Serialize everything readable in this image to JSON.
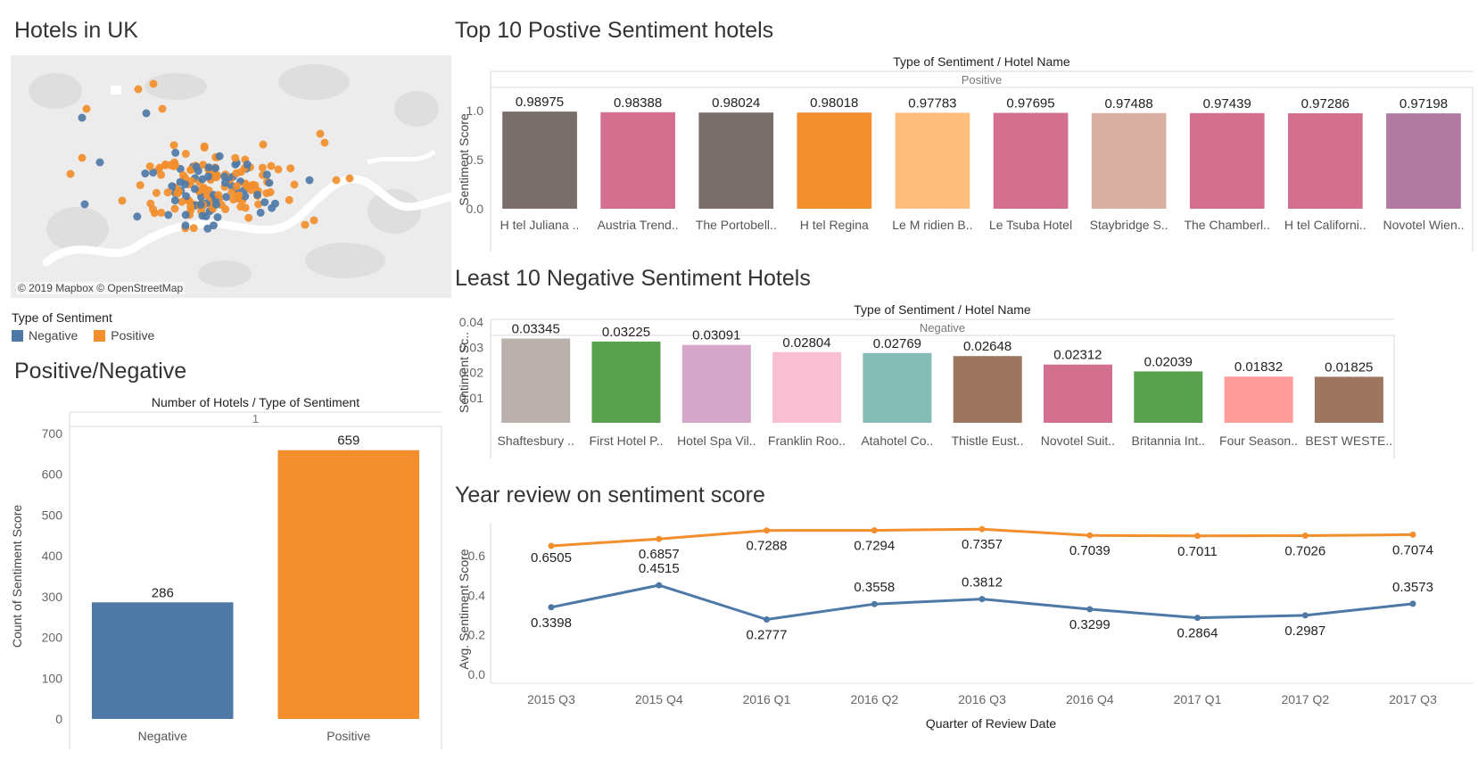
{
  "map": {
    "title": "Hotels in UK",
    "credit": "© 2019 Mapbox © OpenStreetMap",
    "legend_title": "Type of Sentiment",
    "legend": [
      {
        "label": "Negative",
        "color": "#4e79a7"
      },
      {
        "label": "Positive",
        "color": "#f28e2b"
      }
    ]
  },
  "chart_data": [
    {
      "id": "posneg",
      "type": "bar",
      "title": "Positive/Negative",
      "header": "Number of Hotels / Type of Sentiment",
      "subheader": "1",
      "ylabel": "Count of Sentiment Score",
      "categories": [
        "Negative",
        "Positive"
      ],
      "values": [
        286,
        659
      ],
      "colors": [
        "#4e79a7",
        "#f28e2b"
      ],
      "ylim": [
        0,
        700
      ],
      "yticks": [
        "0",
        "100",
        "200",
        "300",
        "400",
        "500",
        "600",
        "700"
      ]
    },
    {
      "id": "top10",
      "type": "bar",
      "title": "Top 10 Postive Sentiment hotels",
      "header": "Type of Sentiment / Hotel Name",
      "subheader": "Positive",
      "ylabel": "Sentiment Score",
      "categories": [
        "H tel Juliana ..",
        "Austria Trend..",
        "The Portobell..",
        "H tel Regina",
        "Le M ridien B..",
        "Le Tsuba Hotel",
        "Staybridge S..",
        "The Chamberl..",
        "H tel Californi..",
        "Novotel Wien.."
      ],
      "values": [
        0.98975,
        0.98388,
        0.98024,
        0.98018,
        0.97783,
        0.97695,
        0.97488,
        0.97439,
        0.97286,
        0.97198
      ],
      "labels": [
        "0.98975",
        "0.98388",
        "0.98024",
        "0.98018",
        "0.97783",
        "0.97695",
        "0.97488",
        "0.97439",
        "0.97286",
        "0.97198"
      ],
      "colors": [
        "#7a6e6b",
        "#d4708f",
        "#7a6e6b",
        "#f28e2b",
        "#ffbe7d",
        "#d4708f",
        "#d8b1a3",
        "#d4708f",
        "#d4708f",
        "#b07aa1"
      ],
      "ylim": [
        0,
        1.0
      ],
      "yticks": [
        "0.0",
        "0.5",
        "1.0"
      ]
    },
    {
      "id": "least10",
      "type": "bar",
      "title": "Least 10 Negative Sentiment Hotels",
      "header": "Type of Sentiment / Hotel Name",
      "subheader": "Negative",
      "ylabel": "Sentiment Sc..",
      "categories": [
        "Shaftesbury ..",
        "First Hotel P..",
        "Hotel Spa Vil..",
        "Franklin Roo..",
        "Atahotel Co..",
        "Thistle Eust..",
        "Novotel Suit..",
        "Britannia Int..",
        "Four Season..",
        "BEST WESTE.."
      ],
      "values": [
        0.03345,
        0.03225,
        0.03091,
        0.02804,
        0.02769,
        0.02648,
        0.02312,
        0.02039,
        0.01832,
        0.01825
      ],
      "labels": [
        "0.03345",
        "0.03225",
        "0.03091",
        "0.02804",
        "0.02769",
        "0.02648",
        "0.02312",
        "0.02039",
        "0.01832",
        "0.01825"
      ],
      "colors": [
        "#bab0ac",
        "#59a14f",
        "#d4a6c8",
        "#fabfd2",
        "#86bcb6",
        "#9d7660",
        "#d4708f",
        "#59a14f",
        "#ff9d9a",
        "#9d7660"
      ],
      "ylim": [
        0,
        0.04
      ],
      "yticks": [
        "0.01",
        "0.02",
        "0.03",
        "0.04"
      ]
    },
    {
      "id": "year",
      "type": "line",
      "title": "Year review on sentiment score",
      "xlabel": "Quarter of Review Date",
      "ylabel": "Avg. Sentiment Score",
      "categories": [
        "2015 Q3",
        "2015 Q4",
        "2016 Q1",
        "2016 Q2",
        "2016 Q3",
        "2016 Q4",
        "2017 Q1",
        "2017 Q2",
        "2017 Q3"
      ],
      "series": [
        {
          "color": "#f28e2b",
          "values": [
            0.6505,
            0.6857,
            0.7288,
            0.7294,
            0.7357,
            0.7039,
            0.7011,
            0.7026,
            0.7074
          ],
          "labels": [
            "0.6505",
            "0.6857",
            "0.7288",
            "0.7294",
            "0.7357",
            "0.7039",
            "0.7011",
            "0.7026",
            "0.7074"
          ]
        },
        {
          "color": "#4e79a7",
          "values": [
            0.3398,
            0.4515,
            0.2777,
            0.3558,
            0.3812,
            0.3299,
            0.2864,
            0.2987,
            0.3573
          ],
          "labels": [
            "0.3398",
            "0.4515",
            "0.2777",
            "0.3558",
            "0.3812",
            "0.3299",
            "0.2864",
            "0.2987",
            "0.3573"
          ]
        }
      ],
      "ylim": [
        0,
        0.75
      ],
      "yticks": [
        "0.0",
        "0.2",
        "0.4",
        "0.6"
      ]
    }
  ]
}
